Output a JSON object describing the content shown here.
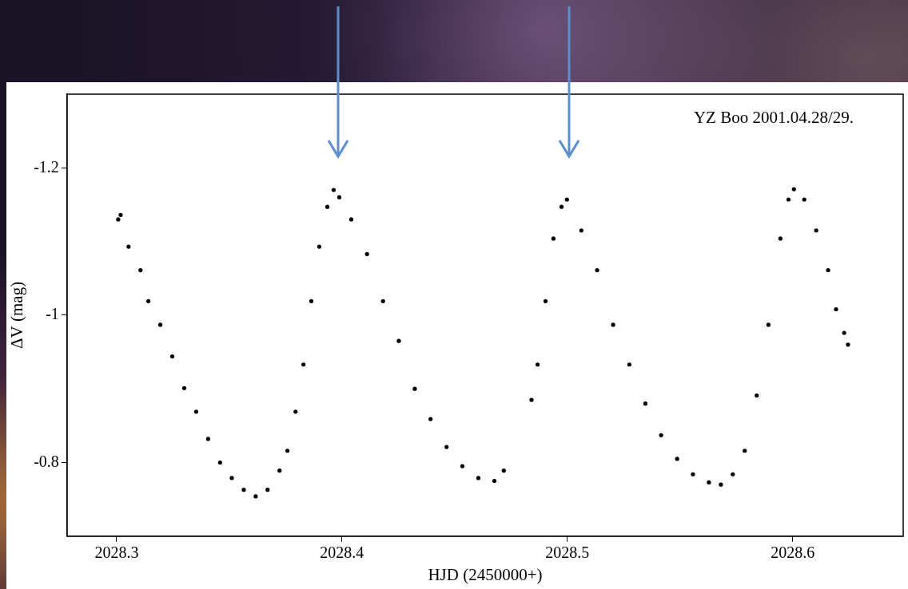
{
  "chart_data": {
    "type": "scatter",
    "annotation": "YZ Boo 2001.04.28/29.",
    "x_label": "HJD (2450000+)",
    "y_label": "ΔV (mag)",
    "x": [
      2028.3007,
      2028.3018,
      2028.3053,
      2028.3106,
      2028.3141,
      2028.3194,
      2028.3247,
      2028.33,
      2028.3353,
      2028.3406,
      2028.3459,
      2028.3511,
      2028.3564,
      2028.3617,
      2028.367,
      2028.3723,
      2028.3758,
      2028.3794,
      2028.3829,
      2028.3864,
      2028.3899,
      2028.3935,
      2028.3963,
      2028.3988,
      2028.4041,
      2028.4111,
      2028.4182,
      2028.4252,
      2028.4323,
      2028.4393,
      2028.4464,
      2028.4534,
      2028.4605,
      2028.4676,
      2028.4718,
      2028.4841,
      2028.4868,
      2028.4903,
      2028.4938,
      2028.4974,
      2028.4998,
      2028.5062,
      2028.5132,
      2028.5203,
      2028.5275,
      2028.5346,
      2028.5416,
      2028.5487,
      2028.5557,
      2028.5628,
      2028.5681,
      2028.5734,
      2028.5787,
      2028.584,
      2028.5892,
      2028.5945,
      2028.5981,
      2028.6005,
      2028.6051,
      2028.6104,
      2028.6157,
      2028.6192,
      2028.6228,
      2028.6245
    ],
    "values": [
      -1.13,
      -1.136,
      -1.093,
      -1.061,
      -1.019,
      -0.987,
      -0.944,
      -0.901,
      -0.869,
      -0.832,
      -0.8,
      -0.779,
      -0.763,
      -0.754,
      -0.763,
      -0.789,
      -0.816,
      -0.869,
      -0.933,
      -1.019,
      -1.093,
      -1.147,
      -1.17,
      -1.16,
      -1.13,
      -1.083,
      -1.019,
      -0.965,
      -0.9,
      -0.859,
      -0.821,
      -0.795,
      -0.779,
      -0.775,
      -0.789,
      -0.885,
      -0.933,
      -1.019,
      -1.104,
      -1.147,
      -1.157,
      -1.115,
      -1.061,
      -0.987,
      -0.933,
      -0.88,
      -0.837,
      -0.805,
      -0.784,
      -0.773,
      -0.77,
      -0.784,
      -0.816,
      -0.891,
      -0.987,
      -1.104,
      -1.157,
      -1.171,
      -1.157,
      -1.115,
      -1.061,
      -1.008,
      -0.976,
      -0.96
    ],
    "color": "#000000",
    "marker": "circle",
    "xlim": [
      2028.278,
      2028.649
    ],
    "xticks": [
      2028.3,
      2028.4,
      2028.5,
      2028.6
    ],
    "ylim": [
      -0.7,
      -1.3
    ],
    "yticks": [
      -1.2,
      -1,
      -0.8
    ],
    "grid": false
  }
}
